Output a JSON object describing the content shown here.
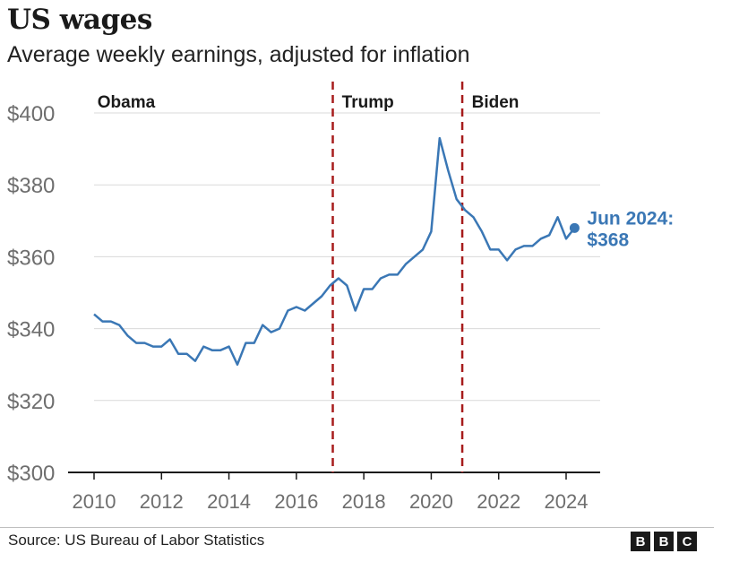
{
  "title": "US wages",
  "subtitle": "Average weekly earnings, adjusted for inflation",
  "source": "Source: US Bureau of Labor Statistics",
  "logo": [
    "B",
    "B",
    "C"
  ],
  "colors": {
    "line": "#3a77b5",
    "divider": "#a71c1c",
    "grid": "#d9d9d9",
    "axis": "#1a1a1a",
    "tick_text": "#6e6e6e",
    "annotation": "#3a77b5"
  },
  "chart_data": {
    "type": "line",
    "title": "US wages",
    "subtitle": "Average weekly earnings, adjusted for inflation",
    "xlabel": "",
    "ylabel": "",
    "xlim": [
      2010,
      2025
    ],
    "ylim": [
      300,
      400
    ],
    "x_ticks": [
      2010,
      2012,
      2014,
      2016,
      2018,
      2020,
      2022,
      2024
    ],
    "x_tick_labels": [
      "2010",
      "2012",
      "2014",
      "2016",
      "2018",
      "2020",
      "2022",
      "2024"
    ],
    "y_ticks": [
      300,
      320,
      340,
      360,
      380,
      400
    ],
    "y_tick_labels": [
      "$300",
      "$320",
      "$340",
      "$360",
      "$380",
      "$400"
    ],
    "grid": "horizontal",
    "legend": "none",
    "series": [
      {
        "name": "",
        "x": [
          2010.0,
          2010.25,
          2010.5,
          2010.75,
          2011.0,
          2011.25,
          2011.5,
          2011.75,
          2012.0,
          2012.25,
          2012.5,
          2012.75,
          2013.0,
          2013.25,
          2013.5,
          2013.75,
          2014.0,
          2014.25,
          2014.5,
          2014.75,
          2015.0,
          2015.25,
          2015.5,
          2015.75,
          2016.0,
          2016.25,
          2016.5,
          2016.75,
          2017.0,
          2017.25,
          2017.5,
          2017.75,
          2018.0,
          2018.25,
          2018.5,
          2018.75,
          2019.0,
          2019.25,
          2019.5,
          2019.75,
          2020.0,
          2020.25,
          2020.5,
          2020.75,
          2021.0,
          2021.25,
          2021.5,
          2021.75,
          2022.0,
          2022.25,
          2022.5,
          2022.75,
          2023.0,
          2023.25,
          2023.5,
          2023.75,
          2024.0,
          2024.25
        ],
        "y": [
          344,
          342,
          342,
          341,
          338,
          336,
          336,
          335,
          335,
          337,
          333,
          333,
          331,
          335,
          334,
          334,
          335,
          330,
          336,
          336,
          341,
          339,
          340,
          345,
          346,
          345,
          347,
          349,
          352,
          354,
          352,
          345,
          351,
          351,
          354,
          355,
          355,
          358,
          360,
          362,
          367,
          393,
          384,
          376,
          373,
          371,
          367,
          362,
          362,
          359,
          362,
          363,
          363,
          365,
          366,
          371,
          365,
          368
        ]
      }
    ],
    "dividers": [
      {
        "x": 2017.08,
        "label": "Trump"
      },
      {
        "x": 2020.92,
        "label": "Biden"
      }
    ],
    "period_labels": [
      {
        "x": 2010.1,
        "label": "Obama"
      },
      {
        "x": 2017.35,
        "label": "Trump"
      },
      {
        "x": 2021.2,
        "label": "Biden"
      }
    ],
    "highlight": {
      "x": 2024.25,
      "y": 368,
      "label_line1": "Jun 2024:",
      "label_line2": "$368"
    }
  }
}
